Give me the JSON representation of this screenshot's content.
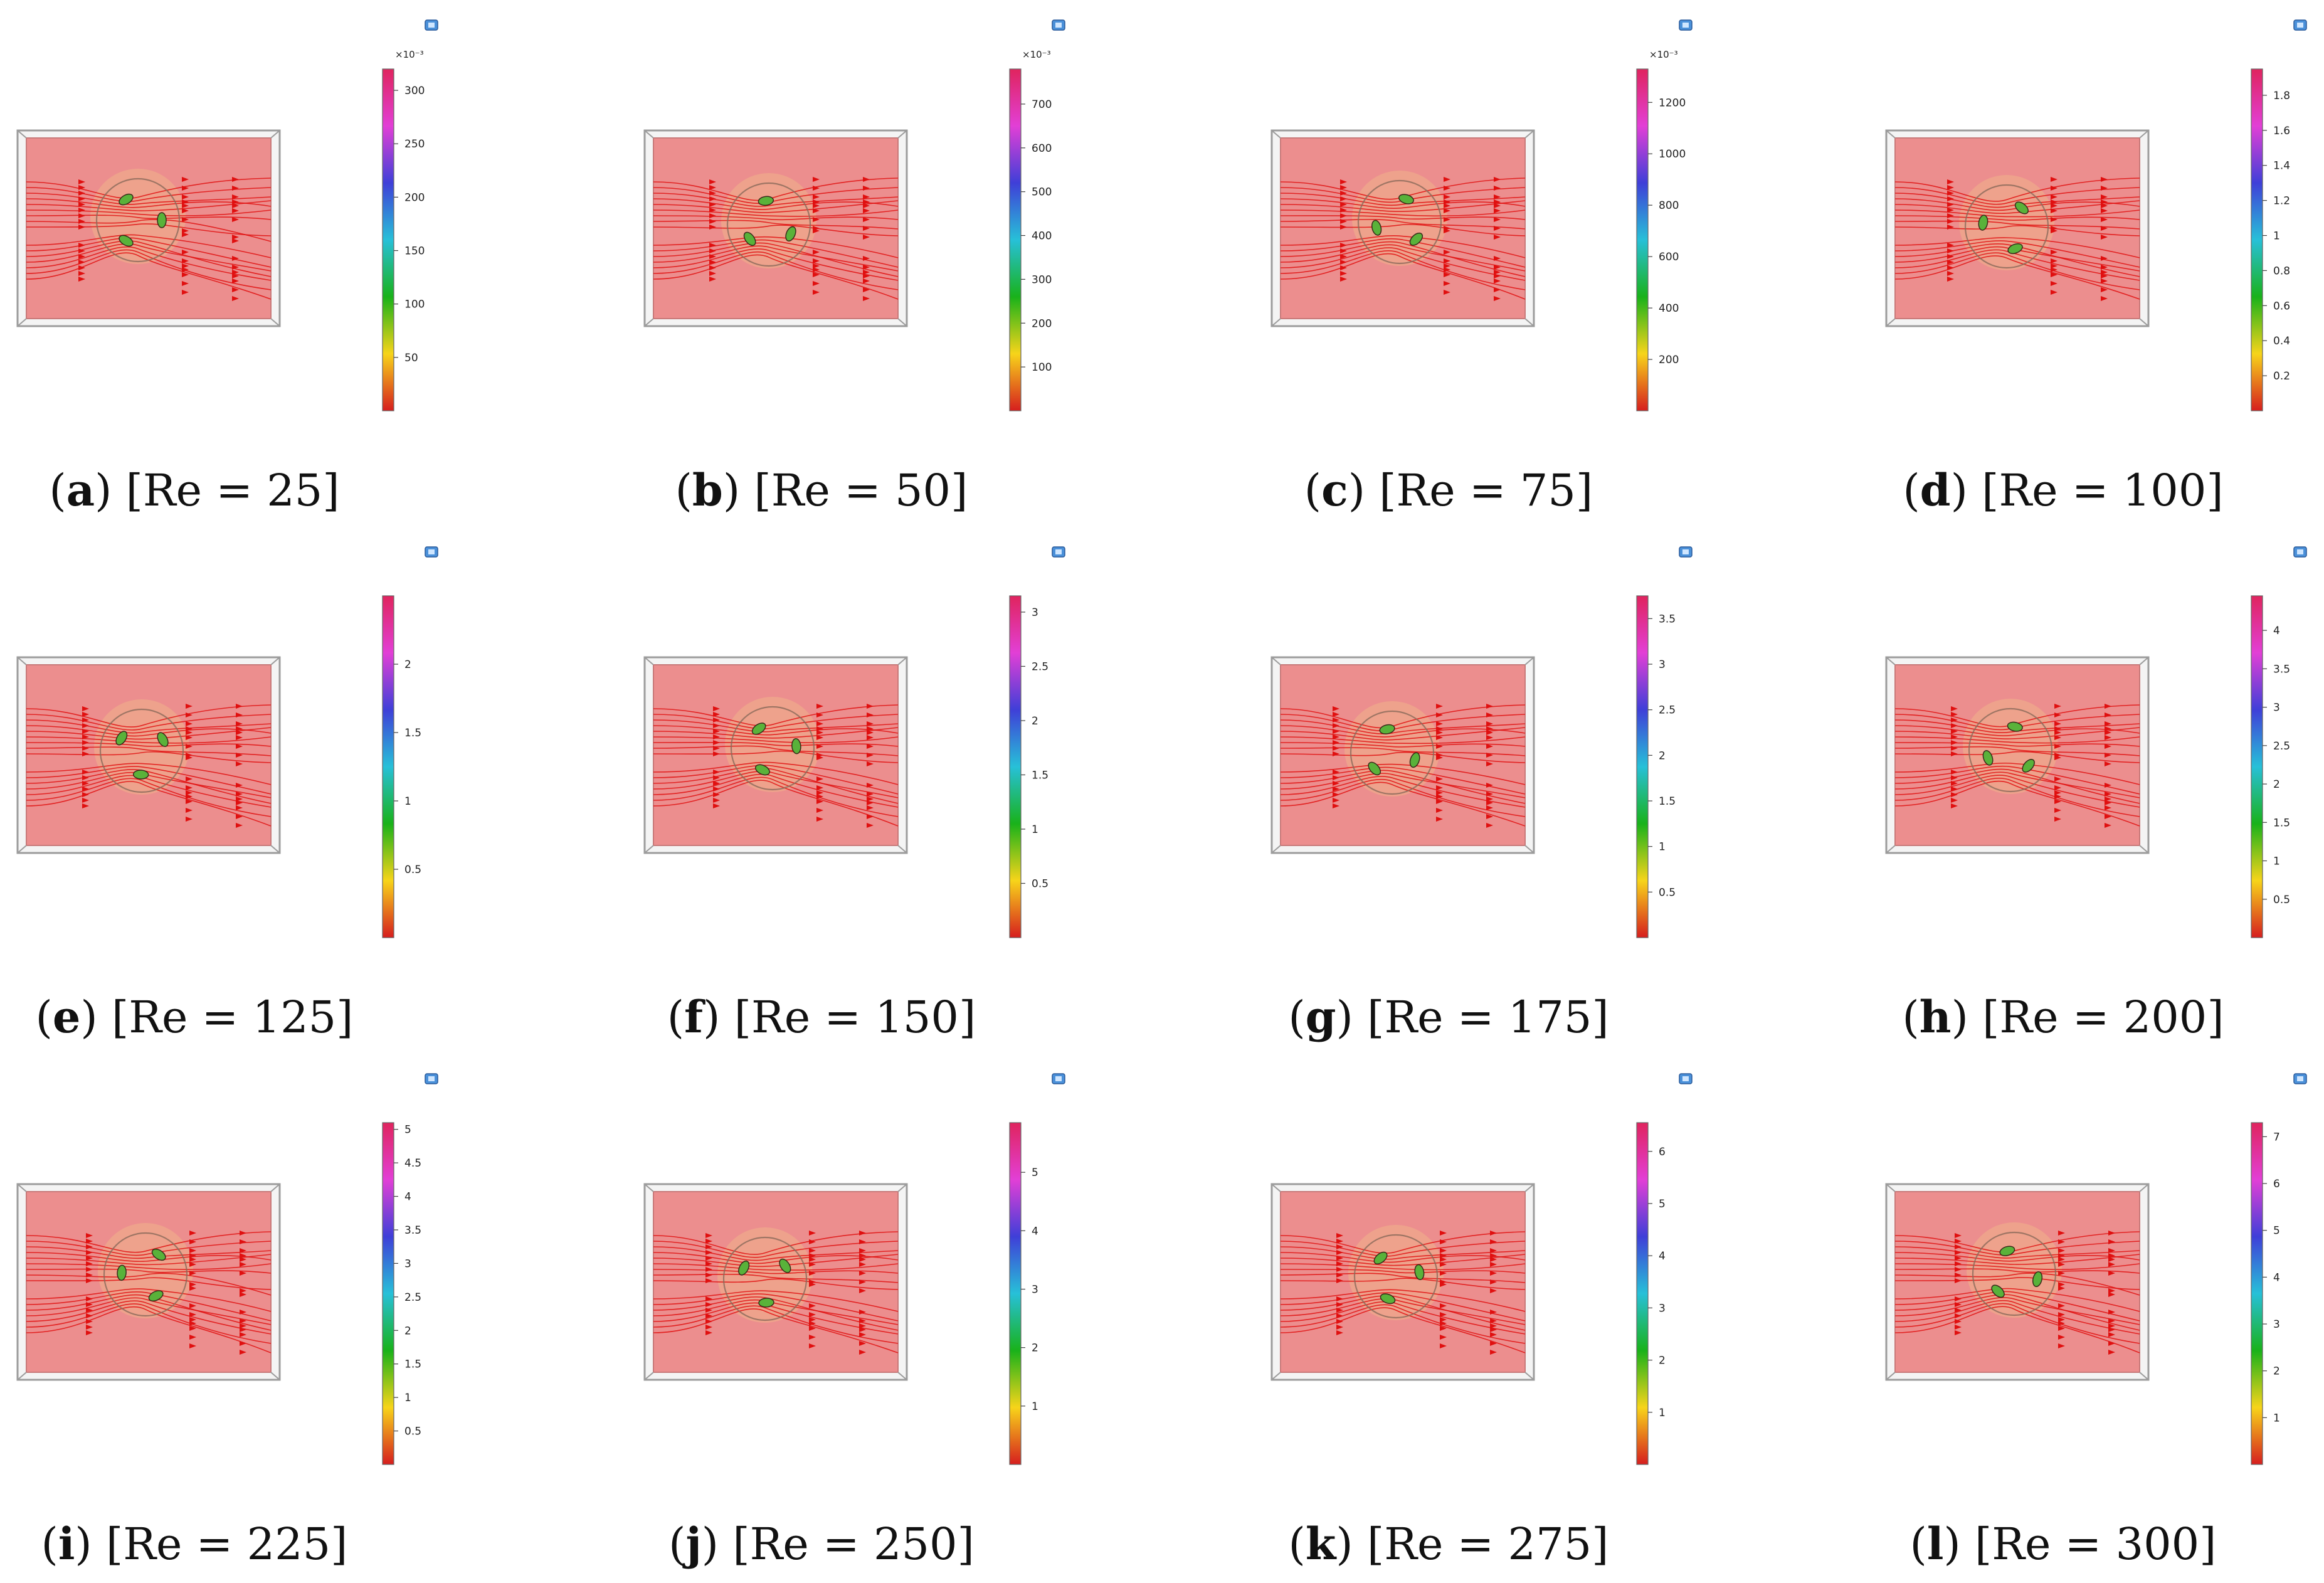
{
  "figure": {
    "panels": [
      {
        "letter": "a",
        "label": "[Re = 25]",
        "multiplier": "×10⁻³",
        "ticks": [
          "300",
          "250",
          "200",
          "150",
          "100",
          "50"
        ],
        "max_value": 320,
        "variant": 0
      },
      {
        "letter": "b",
        "label": "[Re = 50]",
        "multiplier": "×10⁻³",
        "ticks": [
          "700",
          "600",
          "500",
          "400",
          "300",
          "200",
          "100"
        ],
        "max_value": 780,
        "variant": 1
      },
      {
        "letter": "c",
        "label": "[Re = 75]",
        "multiplier": "×10⁻³",
        "ticks": [
          "1200",
          "1000",
          "800",
          "600",
          "400",
          "200"
        ],
        "max_value": 1330,
        "variant": 2
      },
      {
        "letter": "d",
        "label": "[Re = 100]",
        "multiplier": "",
        "ticks": [
          "1.8",
          "1.6",
          "1.4",
          "1.2",
          "1",
          "0.8",
          "0.6",
          "0.4",
          "0.2"
        ],
        "max_value": 1.95,
        "variant": 3
      },
      {
        "letter": "e",
        "label": "[Re = 125]",
        "multiplier": "",
        "ticks": [
          "2",
          "1.5",
          "1",
          "0.5"
        ],
        "max_value": 2.5,
        "variant": 4
      },
      {
        "letter": "f",
        "label": "[Re = 150]",
        "multiplier": "",
        "ticks": [
          "3",
          "2.5",
          "2",
          "1.5",
          "1",
          "0.5"
        ],
        "max_value": 3.15,
        "variant": 5
      },
      {
        "letter": "g",
        "label": "[Re = 175]",
        "multiplier": "",
        "ticks": [
          "3.5",
          "3",
          "2.5",
          "2",
          "1.5",
          "1",
          "0.5"
        ],
        "max_value": 3.75,
        "variant": 6
      },
      {
        "letter": "h",
        "label": "[Re = 200]",
        "multiplier": "",
        "ticks": [
          "4",
          "3.5",
          "3",
          "2.5",
          "2",
          "1.5",
          "1",
          "0.5"
        ],
        "max_value": 4.45,
        "variant": 7
      },
      {
        "letter": "i",
        "label": "[Re = 225]",
        "multiplier": "",
        "ticks": [
          "5",
          "4.5",
          "4",
          "3.5",
          "3",
          "2.5",
          "2",
          "1.5",
          "1",
          "0.5"
        ],
        "max_value": 5.1,
        "variant": 8
      },
      {
        "letter": "j",
        "label": "[Re = 250]",
        "multiplier": "",
        "ticks": [
          "5",
          "4",
          "3",
          "2",
          "1"
        ],
        "max_value": 5.85,
        "variant": 9
      },
      {
        "letter": "k",
        "label": "[Re = 275]",
        "multiplier": "",
        "ticks": [
          "6",
          "5",
          "4",
          "3",
          "2",
          "1"
        ],
        "max_value": 6.55,
        "variant": 10
      },
      {
        "letter": "l",
        "label": "[Re = 300]",
        "multiplier": "",
        "ticks": [
          "7",
          "6",
          "5",
          "4",
          "3",
          "2",
          "1"
        ],
        "max_value": 7.3,
        "variant": 11
      }
    ],
    "colors": {
      "domain_fill": "#ec8e8e",
      "domain_inner": "#e99090",
      "streamline": "#e01010",
      "cylinder_edge": "#8a6a5a",
      "rod_fill": "#59b23a",
      "colorbar_stops": [
        "#d61e1e",
        "#f7d41a",
        "#19b21a",
        "#27c0d8",
        "#3f3fd8",
        "#e23fd6",
        "#e0245e"
      ]
    },
    "icons": [
      "axis-view-icon"
    ]
  }
}
